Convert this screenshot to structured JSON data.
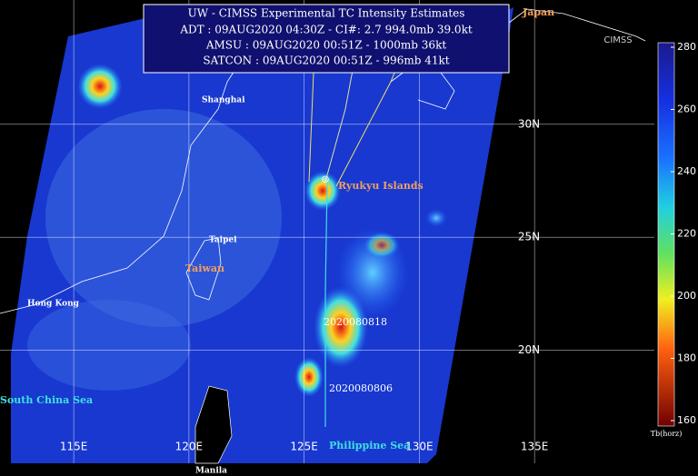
{
  "title_box": {
    "lines": [
      "UW - CIMSS Experimental TC Intensity Estimates",
      "ADT : 09AUG2020 04:30Z -  CI#: 2.7  994.0mb  39.0kt",
      "AMSU : 09AUG2020 00:51Z -  1000mb  36kt",
      "SATCON : 09AUG2020 00:51Z -  996mb  41kt"
    ]
  },
  "logo": "CIMSS",
  "places": {
    "japan": "Japan",
    "shanghai": "Shanghai",
    "taipei": "Taipei",
    "taiwan": "Taiwan",
    "hong_kong": "Hong Kong",
    "ryukyu": "Ryukyu Islands",
    "south_china_sea": "South China Sea",
    "philippine_sea": "Philippine Sea",
    "manila": "Manila"
  },
  "track_labels": [
    "2020080818",
    "2020080806"
  ],
  "map": {
    "lon_range": [
      111.8,
      140.2
    ],
    "lat_range": [
      35.5,
      15.0
    ],
    "lon_ticks": [
      {
        "value": 115,
        "label": "115E"
      },
      {
        "value": 120,
        "label": "120E"
      },
      {
        "value": 125,
        "label": "125E"
      },
      {
        "value": 130,
        "label": "130E"
      },
      {
        "value": 135,
        "label": "135E"
      }
    ],
    "lat_ticks": [
      {
        "value": 30,
        "label": "30N"
      },
      {
        "value": 25,
        "label": "25N"
      },
      {
        "value": 20,
        "label": "20N"
      }
    ]
  },
  "colorbar": {
    "title": "Tb(horz)",
    "range": [
      160,
      280
    ],
    "ticks": [
      280,
      260,
      240,
      220,
      200,
      180,
      160
    ]
  }
}
